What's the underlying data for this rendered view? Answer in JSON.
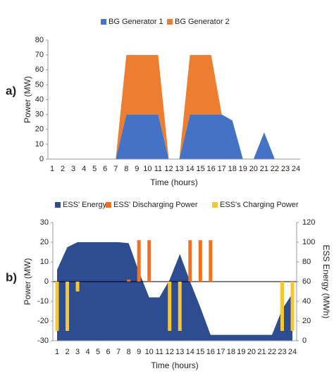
{
  "chart_data": [
    {
      "type": "stacked_area",
      "label": "a)",
      "xlabel": "Time (hours)",
      "ylabel": "Power (MW)",
      "x": [
        1,
        2,
        3,
        4,
        5,
        6,
        7,
        8,
        9,
        10,
        11,
        12,
        13,
        14,
        15,
        16,
        17,
        18,
        19,
        20,
        21,
        22,
        23,
        24
      ],
      "xlim": [
        1,
        24
      ],
      "xticks": [
        1,
        2,
        3,
        4,
        5,
        6,
        7,
        8,
        9,
        10,
        11,
        12,
        13,
        14,
        15,
        16,
        17,
        18,
        19,
        20,
        21,
        22,
        23,
        24
      ],
      "ylim": [
        0,
        80
      ],
      "yticks": [
        0,
        10,
        20,
        30,
        40,
        50,
        60,
        70,
        80
      ],
      "series": [
        {
          "name": "BG Generator 1",
          "color": "#4472c4",
          "values": [
            0,
            0,
            0,
            0,
            0,
            0,
            0,
            30,
            30,
            30,
            30,
            0,
            0,
            30,
            30,
            30,
            30,
            26,
            0,
            0,
            18,
            0,
            0,
            0
          ]
        },
        {
          "name": "BG Generator 2",
          "color": "#ed7d31",
          "values": [
            0,
            0,
            0,
            0,
            0,
            0,
            0,
            40,
            40,
            40,
            40,
            0,
            0,
            40,
            40,
            40,
            0,
            0,
            0,
            0,
            0,
            0,
            0,
            0
          ]
        }
      ]
    },
    {
      "type": "combo",
      "label": "b)",
      "xlabel": "Time (hours)",
      "ylabel": "Power (MW)",
      "y2label": "ESS Energy (MWh)",
      "x": [
        1,
        2,
        3,
        4,
        5,
        6,
        7,
        8,
        9,
        10,
        11,
        12,
        13,
        14,
        15,
        16,
        17,
        18,
        19,
        20,
        21,
        22,
        23,
        24
      ],
      "xlim": [
        1,
        24
      ],
      "xticks": [
        1,
        2,
        3,
        4,
        5,
        6,
        7,
        8,
        9,
        10,
        11,
        12,
        13,
        14,
        15,
        16,
        17,
        18,
        19,
        20,
        21,
        22,
        23,
        24
      ],
      "ylim": [
        -30,
        30
      ],
      "yticks": [
        -30,
        -20,
        -10,
        0,
        10,
        20,
        30
      ],
      "y2lim": [
        0,
        120
      ],
      "y2ticks": [
        0,
        20,
        40,
        60,
        80,
        100,
        120
      ],
      "series": [
        {
          "name": "ESS' Energy",
          "color": "#2e4d91",
          "kind": "area",
          "axis": "y2",
          "values": [
            72,
            95,
            100,
            100,
            100,
            100,
            100,
            99,
            70,
            44,
            44,
            62,
            88,
            60,
            34,
            6,
            6,
            6,
            6,
            6,
            6,
            6,
            32,
            48
          ]
        },
        {
          "name": "ESS' Discharging Power",
          "color": "#f07120",
          "kind": "bar",
          "values": [
            null,
            null,
            null,
            null,
            null,
            null,
            null,
            1,
            21,
            21,
            null,
            null,
            null,
            21,
            21,
            21,
            null,
            null,
            null,
            null,
            null,
            null,
            null,
            null
          ]
        },
        {
          "name": "ESS's Charging Power",
          "color": "#f7c631",
          "kind": "bar",
          "values": [
            -25,
            -25,
            -5,
            null,
            null,
            null,
            null,
            null,
            null,
            null,
            null,
            -25,
            -25,
            null,
            null,
            null,
            null,
            null,
            null,
            null,
            null,
            null,
            -25,
            -25
          ]
        }
      ]
    }
  ]
}
